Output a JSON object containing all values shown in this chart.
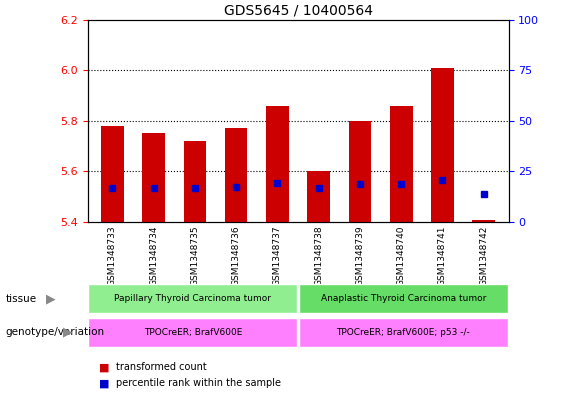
{
  "title": "GDS5645 / 10400564",
  "samples": [
    "GSM1348733",
    "GSM1348734",
    "GSM1348735",
    "GSM1348736",
    "GSM1348737",
    "GSM1348738",
    "GSM1348739",
    "GSM1348740",
    "GSM1348741",
    "GSM1348742"
  ],
  "bar_bottoms": [
    5.4,
    5.4,
    5.4,
    5.4,
    5.4,
    5.4,
    5.4,
    5.4,
    5.4,
    5.4
  ],
  "bar_tops": [
    5.78,
    5.75,
    5.72,
    5.77,
    5.86,
    5.6,
    5.8,
    5.86,
    6.01,
    5.41
  ],
  "blue_y": [
    5.535,
    5.535,
    5.535,
    5.54,
    5.555,
    5.535,
    5.55,
    5.55,
    5.565,
    5.51
  ],
  "ylim_left": [
    5.4,
    6.2
  ],
  "ylim_right": [
    0,
    100
  ],
  "yticks_left": [
    5.4,
    5.6,
    5.8,
    6.0,
    6.2
  ],
  "yticks_right": [
    0,
    25,
    50,
    75,
    100
  ],
  "tissue_labels": [
    "Papillary Thyroid Carcinoma tumor",
    "Anaplastic Thyroid Carcinoma tumor"
  ],
  "genotype_labels": [
    "TPOCreER; BrafV600E",
    "TPOCreER; BrafV600E; p53 -/-"
  ],
  "tissue_color_left": "#90EE90",
  "tissue_color_right": "#66DD66",
  "genotype_color": "#FF80FF",
  "bar_color": "#CC0000",
  "blue_color": "#0000CC",
  "tick_bg_color": "#CCCCCC",
  "dotted_grid_vals": [
    5.6,
    5.8,
    6.0
  ],
  "legend_red_label": "transformed count",
  "legend_blue_label": "percentile rank within the sample",
  "tissue_row_label": "tissue",
  "genotype_row_label": "genotype/variation"
}
